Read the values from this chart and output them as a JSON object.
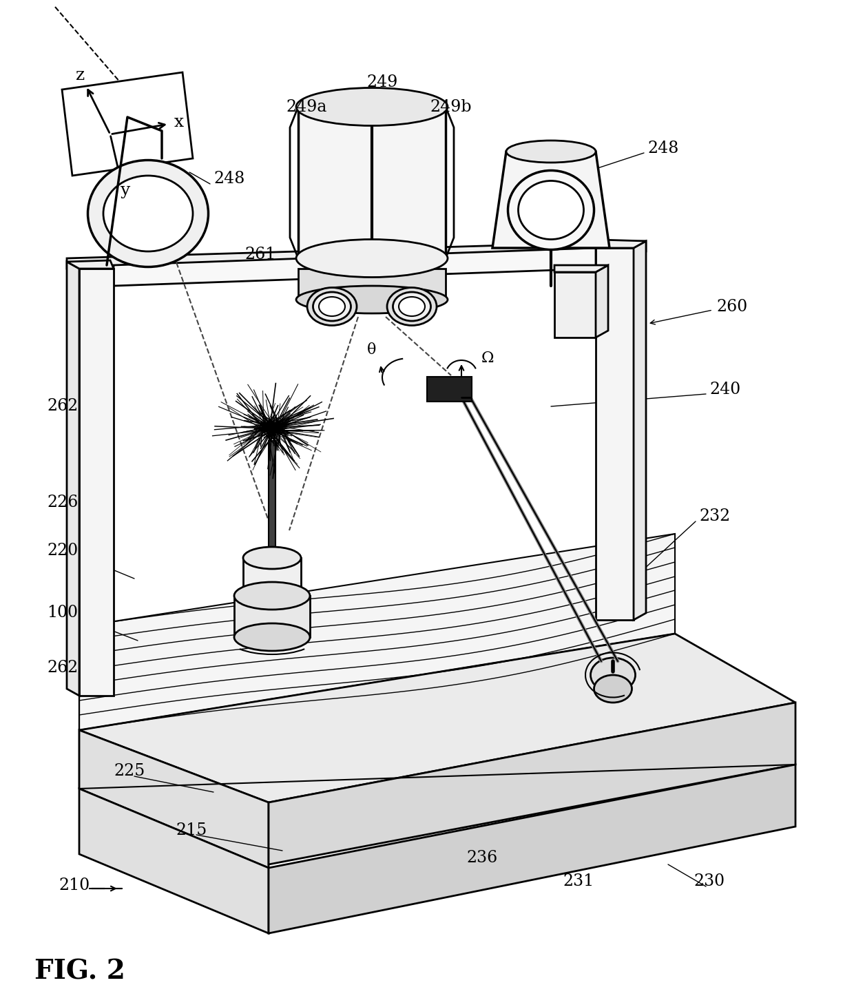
{
  "fig_label": "FIG. 2",
  "background_color": "#ffffff",
  "line_color": "#000000",
  "labels": {
    "z": "z",
    "x": "x",
    "y": "y",
    "248": "248",
    "249": "249",
    "249a": "249a",
    "249b": "249b",
    "261": "261",
    "260": "260",
    "240": "240",
    "226": "226",
    "220": "220",
    "100": "100",
    "262": "262",
    "225": "225",
    "215": "215",
    "210": "210",
    "232": "232",
    "231": "231",
    "230": "230",
    "236": "236",
    "theta": "θ",
    "omega": "Ω"
  },
  "figsize": [
    12.4,
    14.62
  ],
  "dpi": 100
}
